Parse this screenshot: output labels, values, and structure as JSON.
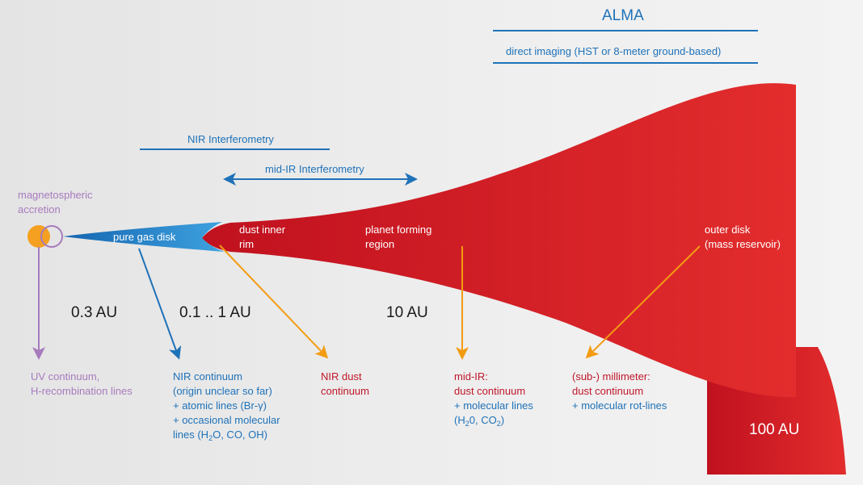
{
  "colors": {
    "blue": "#1f72b8",
    "red": "#d3202a",
    "orange": "#f39c12",
    "purple": "#a77bbd",
    "star": "#f5a020"
  },
  "instruments": {
    "alma": "ALMA",
    "direct_imaging": "direct imaging (HST or 8-meter ground-based)",
    "nir_interferometry": "NIR Interferometry",
    "mid_ir_interferometry": "mid-IR Interferometry"
  },
  "regions": {
    "magnetospheric": [
      "magnetospheric",
      "accretion"
    ],
    "gas_disk": "pure gas disk",
    "inner_rim": [
      "dust inner",
      "rim"
    ],
    "planet_forming": [
      "planet forming",
      "region"
    ],
    "outer_disk": [
      "outer disk",
      "(mass reservoir)"
    ]
  },
  "distances": {
    "d1": "0.3 AU",
    "d2": "0.1 .. 1 AU",
    "d3": "10 AU",
    "d4": "100 AU"
  },
  "observables": {
    "uv": [
      "UV continuum,",
      "H-recombination lines"
    ],
    "nir": {
      "l1": "NIR continuum",
      "l2": "(origin unclear so far)",
      "l3": "+ atomic lines (Br-γ)",
      "l4": "+ occasional molecular",
      "l5a": "lines (H",
      "l5b": "2",
      "l5c": "O, CO, OH)"
    },
    "nir_dust": [
      "NIR dust",
      "continuum"
    ],
    "mid_ir": {
      "l1": "mid-IR:",
      "l2": "dust continuum",
      "l3": "+ molecular lines",
      "l4a": "(H",
      "l4b": "2",
      "l4c": "0, CO",
      "l4d": "2",
      "l4e": ")"
    },
    "submm": [
      "(sub-) millimeter:",
      "dust continuum",
      "+ molecular rot-lines"
    ]
  }
}
